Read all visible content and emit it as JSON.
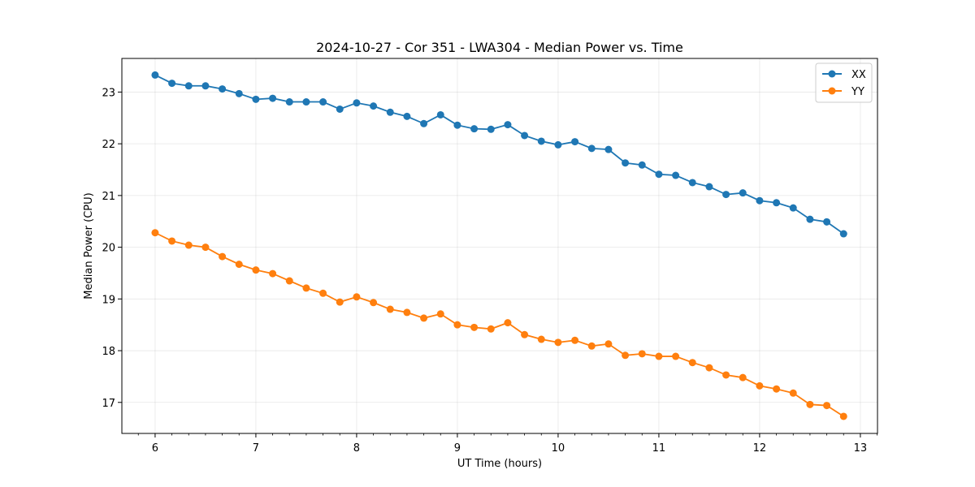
{
  "chart_data": {
    "type": "line",
    "title": "2024-10-27 - Cor 351 - LWA304 - Median Power vs. Time",
    "xlabel": "UT Time (hours)",
    "ylabel": "Median Power (CPU)",
    "xlim": [
      5.67,
      13.17
    ],
    "ylim": [
      16.4,
      23.65
    ],
    "xticks": [
      6,
      7,
      8,
      9,
      10,
      11,
      12,
      13
    ],
    "yticks": [
      17,
      18,
      19,
      20,
      21,
      22,
      23
    ],
    "grid": true,
    "legend_position": "top-right",
    "x": [
      6.0,
      6.1667,
      6.3333,
      6.5,
      6.6667,
      6.8333,
      7.0,
      7.1667,
      7.3333,
      7.5,
      7.6667,
      7.8333,
      8.0,
      8.1667,
      8.3333,
      8.5,
      8.6667,
      8.8333,
      9.0,
      9.1667,
      9.3333,
      9.5,
      9.6667,
      9.8333,
      10.0,
      10.1667,
      10.3333,
      10.5,
      10.6667,
      10.8333,
      11.0,
      11.1667,
      11.3333,
      11.5,
      11.6667,
      11.8333,
      12.0,
      12.1667,
      12.3333,
      12.5,
      12.6667,
      12.8333
    ],
    "series": [
      {
        "name": "XX",
        "color": "#1f77b4",
        "values": [
          23.33,
          23.17,
          23.12,
          23.12,
          23.06,
          22.97,
          22.86,
          22.88,
          22.81,
          22.81,
          22.81,
          22.67,
          22.79,
          22.73,
          22.61,
          22.53,
          22.39,
          22.56,
          22.36,
          22.29,
          22.28,
          22.37,
          22.16,
          22.05,
          21.98,
          22.04,
          21.91,
          21.89,
          21.63,
          21.59,
          21.41,
          21.39,
          21.25,
          21.17,
          21.02,
          21.05,
          20.9,
          20.86,
          20.76,
          20.54,
          20.49,
          20.26
        ]
      },
      {
        "name": "YY",
        "color": "#ff7f0e",
        "values": [
          20.28,
          20.12,
          20.04,
          20.0,
          19.82,
          19.67,
          19.56,
          19.49,
          19.35,
          19.21,
          19.11,
          18.94,
          19.04,
          18.93,
          18.8,
          18.74,
          18.63,
          18.71,
          18.5,
          18.45,
          18.42,
          18.54,
          18.31,
          18.22,
          18.16,
          18.2,
          18.09,
          18.13,
          17.91,
          17.94,
          17.89,
          17.89,
          17.77,
          17.67,
          17.53,
          17.48,
          17.32,
          17.26,
          17.18,
          16.96,
          16.94,
          16.73
        ]
      }
    ]
  }
}
